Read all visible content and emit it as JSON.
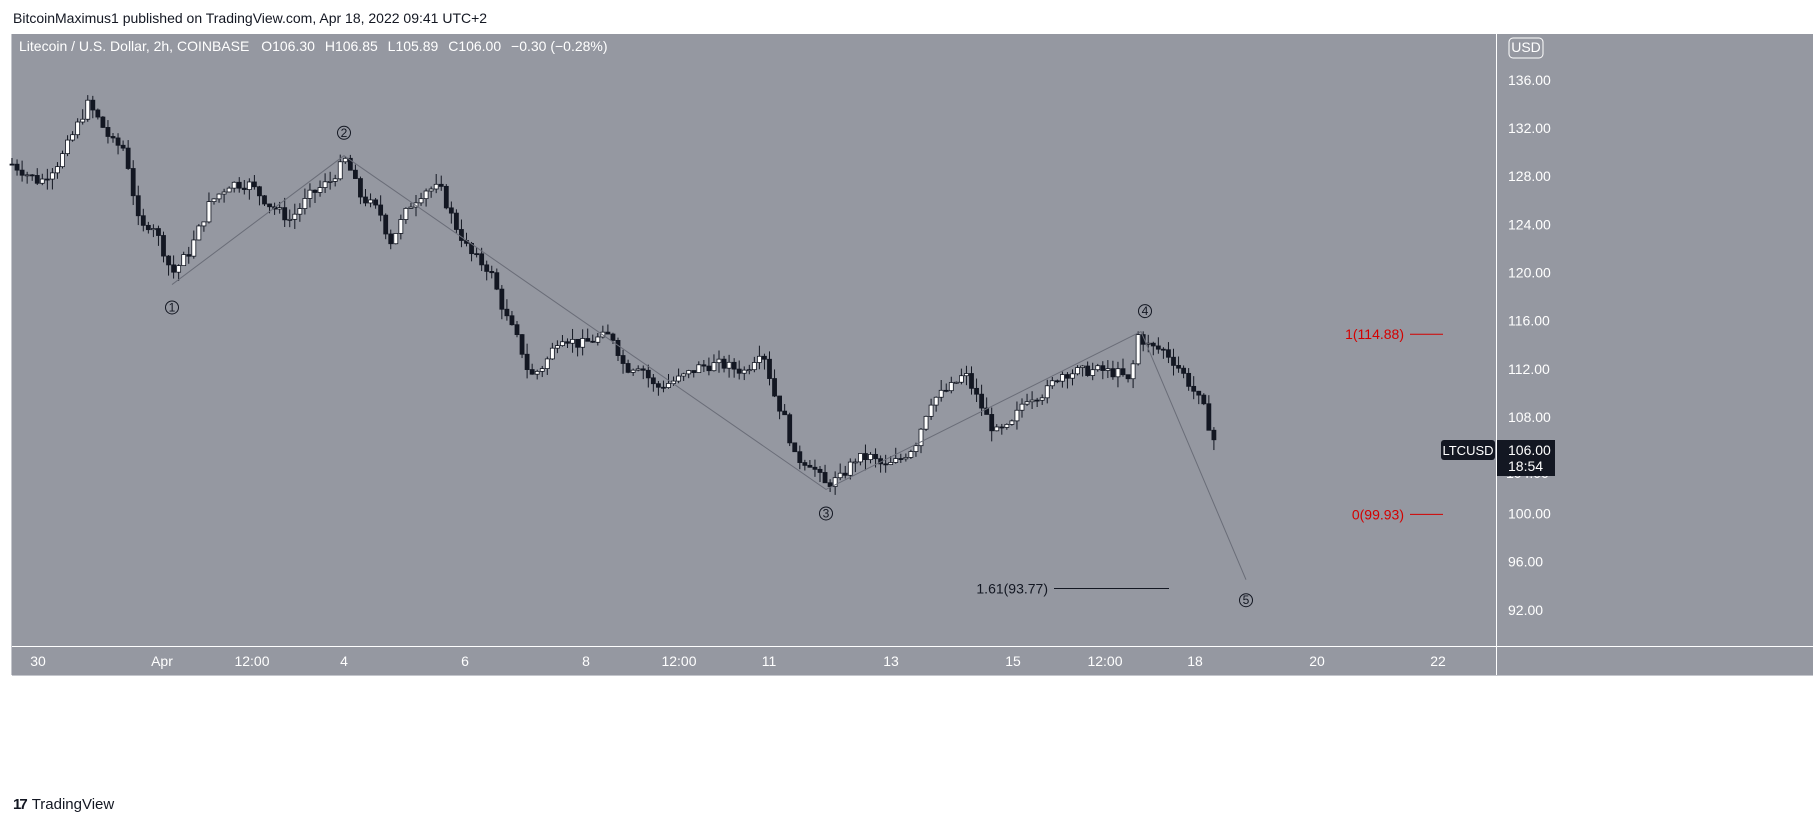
{
  "header": {
    "publish_info": "BitcoinMaximus1 published on TradingView.com, Apr 18, 2022 09:41 UTC+2"
  },
  "legend": {
    "symbol": "Litecoin / U.S. Dollar, 2h, COINBASE",
    "o_key": "O",
    "o_val": "106.30",
    "h_key": "H",
    "h_val": "106.85",
    "l_key": "L",
    "l_val": "105.89",
    "c_key": "C",
    "c_val": "106.00",
    "change": "−0.30 (−0.28%)"
  },
  "currency": "USD",
  "ticker": {
    "name": "LTCUSD",
    "price": "106.00",
    "countdown": "18:54",
    "hidden_label": "104.00"
  },
  "colors": {
    "background": "#9598a1",
    "axis_background": "#9598a1",
    "candle_up": "#ffffff",
    "candle_down": "#131722",
    "wave_line": "#6a6d78",
    "fib_red": "#d40000",
    "fib_dark": "#131722"
  },
  "footer": {
    "logo_mark": "17",
    "logo_text": "TradingView"
  },
  "chart_data": {
    "type": "candlestick",
    "title": "Litecoin / U.S. Dollar, 2h, COINBASE",
    "y_ticks": [
      "136.00",
      "132.00",
      "128.00",
      "124.00",
      "120.00",
      "116.00",
      "112.00",
      "108.00",
      "100.00",
      "96.00",
      "92.00"
    ],
    "x_ticks": [
      "30",
      "Apr",
      "12:00",
      "4",
      "6",
      "8",
      "12:00",
      "11",
      "13",
      "15",
      "12:00",
      "18",
      "20",
      "22"
    ],
    "ylim": [
      89.0,
      139.8
    ],
    "x_index_range": [
      0,
      1488
    ],
    "x_tick_index": [
      38,
      162,
      252,
      344,
      465,
      586,
      679,
      769,
      891,
      1013,
      1105,
      1195,
      1317,
      1438
    ],
    "candles_x_index_range": [
      12,
      1215
    ],
    "price_anchors": [
      {
        "i": 12,
        "p": 129.0
      },
      {
        "i": 40,
        "p": 127.5
      },
      {
        "i": 60,
        "p": 129.3
      },
      {
        "i": 75,
        "p": 131.8
      },
      {
        "i": 88,
        "p": 134.0
      },
      {
        "i": 100,
        "p": 132.5
      },
      {
        "i": 112,
        "p": 130.8
      },
      {
        "i": 125,
        "p": 130.3
      },
      {
        "i": 140,
        "p": 123.5
      },
      {
        "i": 152,
        "p": 124.2
      },
      {
        "i": 165,
        "p": 121.5
      },
      {
        "i": 172,
        "p": 119.9
      },
      {
        "i": 190,
        "p": 121.8
      },
      {
        "i": 210,
        "p": 125.8
      },
      {
        "i": 230,
        "p": 127.4
      },
      {
        "i": 250,
        "p": 127.3
      },
      {
        "i": 270,
        "p": 125.6
      },
      {
        "i": 290,
        "p": 124.4
      },
      {
        "i": 310,
        "p": 126.4
      },
      {
        "i": 330,
        "p": 127.6
      },
      {
        "i": 346,
        "p": 129.4
      },
      {
        "i": 360,
        "p": 126.4
      },
      {
        "i": 380,
        "p": 125.0
      },
      {
        "i": 390,
        "p": 122.5
      },
      {
        "i": 410,
        "p": 125.6
      },
      {
        "i": 425,
        "p": 126.9
      },
      {
        "i": 440,
        "p": 127.0
      },
      {
        "i": 455,
        "p": 124.0
      },
      {
        "i": 470,
        "p": 121.6
      },
      {
        "i": 490,
        "p": 120.2
      },
      {
        "i": 505,
        "p": 116.5
      },
      {
        "i": 520,
        "p": 114.0
      },
      {
        "i": 530,
        "p": 111.3
      },
      {
        "i": 545,
        "p": 112.4
      },
      {
        "i": 560,
        "p": 114.8
      },
      {
        "i": 580,
        "p": 114.0
      },
      {
        "i": 600,
        "p": 114.6
      },
      {
        "i": 612,
        "p": 114.8
      },
      {
        "i": 625,
        "p": 112.0
      },
      {
        "i": 640,
        "p": 112.4
      },
      {
        "i": 655,
        "p": 110.4
      },
      {
        "i": 680,
        "p": 111.2
      },
      {
        "i": 700,
        "p": 112.2
      },
      {
        "i": 720,
        "p": 112.4
      },
      {
        "i": 745,
        "p": 111.8
      },
      {
        "i": 762,
        "p": 113.8
      },
      {
        "i": 775,
        "p": 109.7
      },
      {
        "i": 785,
        "p": 107.8
      },
      {
        "i": 795,
        "p": 104.6
      },
      {
        "i": 810,
        "p": 104.2
      },
      {
        "i": 825,
        "p": 102.4
      },
      {
        "i": 840,
        "p": 102.9
      },
      {
        "i": 855,
        "p": 104.5
      },
      {
        "i": 870,
        "p": 104.7
      },
      {
        "i": 885,
        "p": 103.8
      },
      {
        "i": 900,
        "p": 104.5
      },
      {
        "i": 915,
        "p": 105.7
      },
      {
        "i": 930,
        "p": 109.3
      },
      {
        "i": 950,
        "p": 110.4
      },
      {
        "i": 965,
        "p": 111.6
      },
      {
        "i": 980,
        "p": 109.1
      },
      {
        "i": 995,
        "p": 106.7
      },
      {
        "i": 1010,
        "p": 107.1
      },
      {
        "i": 1025,
        "p": 109.6
      },
      {
        "i": 1045,
        "p": 110.0
      },
      {
        "i": 1060,
        "p": 111.6
      },
      {
        "i": 1080,
        "p": 111.8
      },
      {
        "i": 1100,
        "p": 111.9
      },
      {
        "i": 1120,
        "p": 111.6
      },
      {
        "i": 1130,
        "p": 110.8
      },
      {
        "i": 1138,
        "p": 114.8
      },
      {
        "i": 1150,
        "p": 113.8
      },
      {
        "i": 1165,
        "p": 113.5
      },
      {
        "i": 1180,
        "p": 112.0
      },
      {
        "i": 1195,
        "p": 110.0
      },
      {
        "i": 1205,
        "p": 108.5
      },
      {
        "i": 1212,
        "p": 106.4
      },
      {
        "i": 1215,
        "p": 106.0
      }
    ],
    "waves": [
      {
        "label": "1",
        "i": 172,
        "price": 119.0
      },
      {
        "label": "2",
        "i": 344,
        "price": 129.7
      },
      {
        "label": "3",
        "i": 826,
        "price": 102.0
      },
      {
        "label": "4",
        "i": 1141,
        "price": 115.1
      },
      {
        "label": "5",
        "i": 1246,
        "price": 94.5
      }
    ],
    "wave_label_positions": [
      {
        "label": "1",
        "i": 172,
        "price": 117.1
      },
      {
        "label": "2",
        "i": 344,
        "price": 131.6
      },
      {
        "label": "3",
        "i": 826,
        "price": 100.0
      },
      {
        "label": "4",
        "i": 1145,
        "price": 116.8
      },
      {
        "label": "5",
        "i": 1246,
        "price": 92.8
      }
    ],
    "fib_levels": [
      {
        "label": "1(114.88)",
        "price": 114.88,
        "color": "red",
        "i_from": 1410,
        "i_to": 1443
      },
      {
        "label": "0(99.93)",
        "price": 99.93,
        "color": "red",
        "i_from": 1410,
        "i_to": 1443
      },
      {
        "label": "1.61(93.77)",
        "price": 93.77,
        "color": "dark",
        "i_from": 1054,
        "i_to": 1169
      }
    ]
  }
}
